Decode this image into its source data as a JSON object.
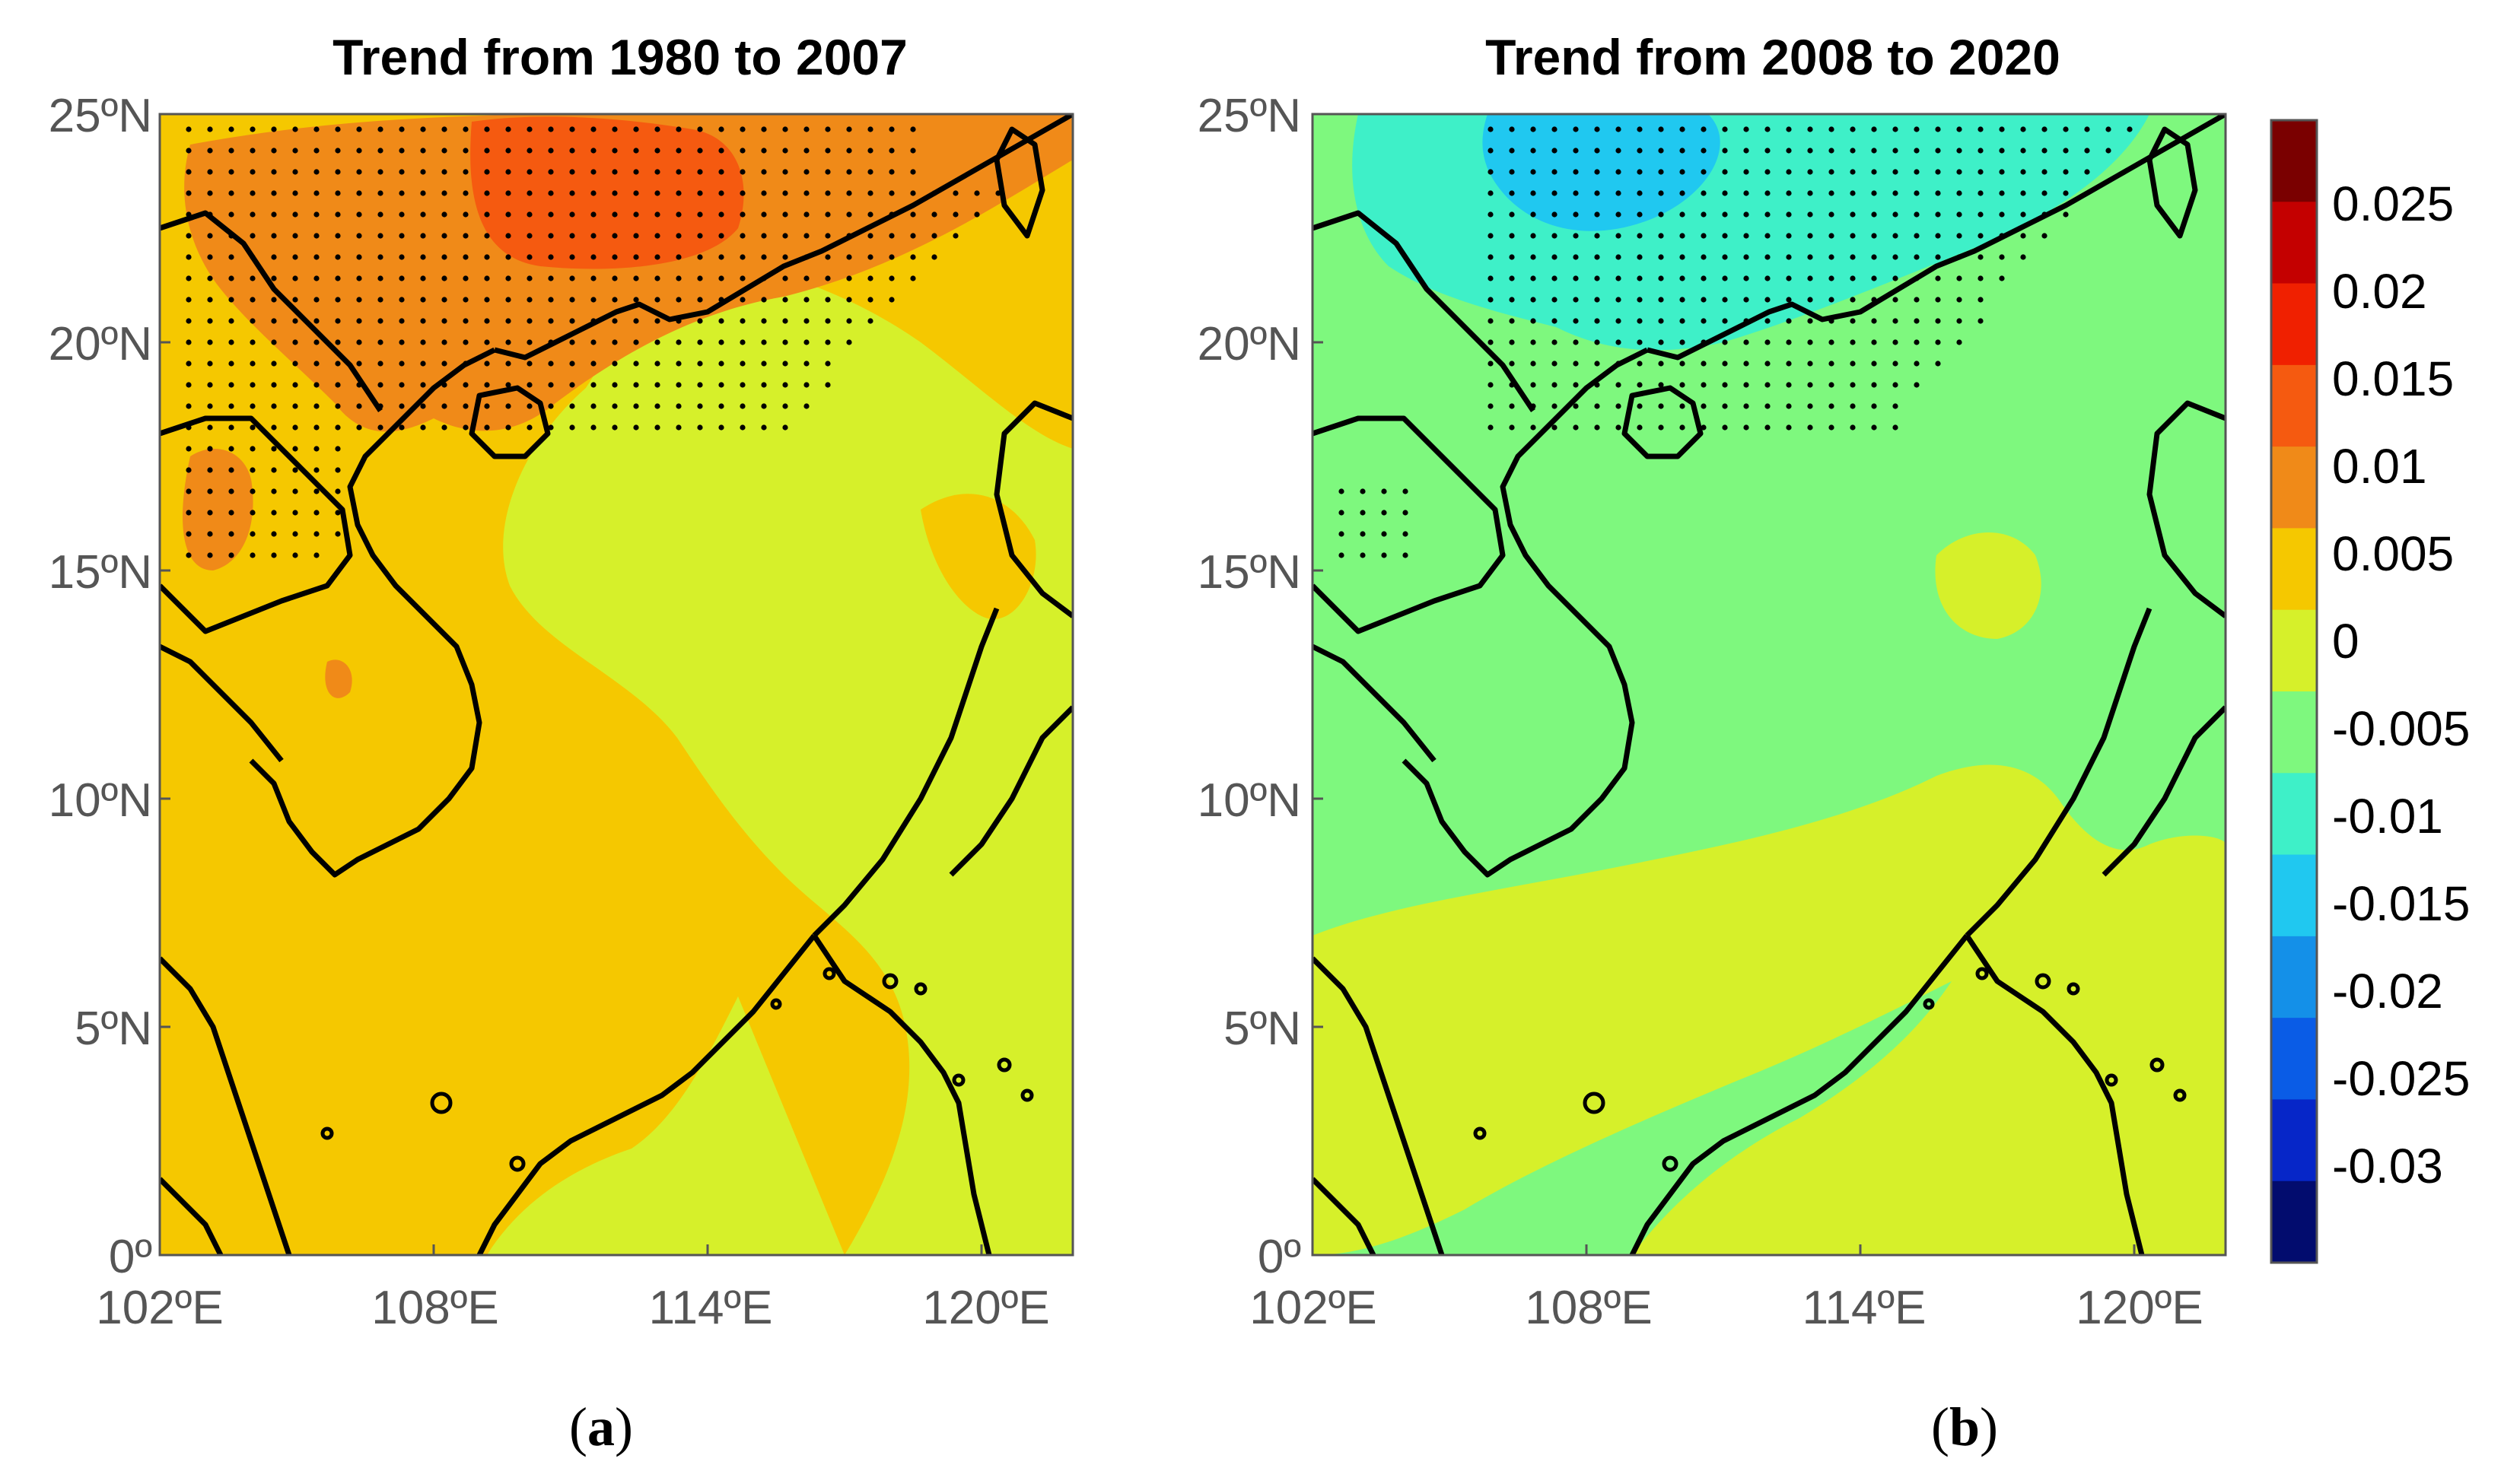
{
  "panels": [
    {
      "title": "Trend from 1980 to 2007",
      "caption_letter": "a"
    },
    {
      "title": "Trend from 2008 to 2020",
      "caption_letter": "b"
    }
  ],
  "axes": {
    "lat_range": [
      0,
      25
    ],
    "lon_range": [
      102,
      122
    ],
    "y_ticks": [
      "25ºN",
      "20ºN",
      "15ºN",
      "10ºN",
      "5ºN",
      "0º"
    ],
    "x_ticks": [
      "102ºE",
      "108ºE",
      "114ºE",
      "120ºE"
    ]
  },
  "colorbar": {
    "labels": [
      "0.025",
      "0.02",
      "0.015",
      "0.01",
      "0.005",
      "0",
      "-0.005",
      "-0.01",
      "-0.015",
      "-0.02",
      "-0.025",
      "-0.03"
    ],
    "colors": [
      "#7a0000",
      "#c40000",
      "#f02000",
      "#f55a10",
      "#f08a18",
      "#f5c800",
      "#d6f02a",
      "#7ef87e",
      "#3ef0c8",
      "#20c8f0",
      "#1490e8",
      "#0a5ce6",
      "#0626c8",
      "#020c6e"
    ]
  },
  "legend_fill": {
    "land_stroke": "#000000",
    "stipple": "#000000"
  }
}
